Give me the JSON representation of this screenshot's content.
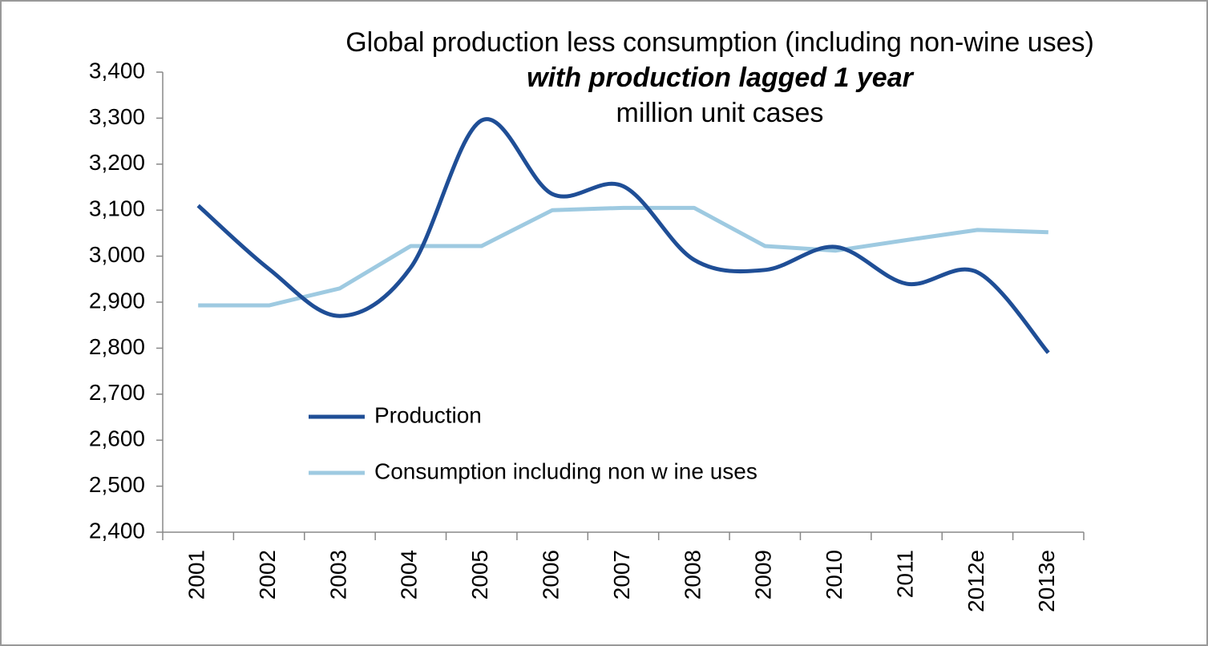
{
  "chart_data": {
    "type": "line",
    "title": [
      "Global production less consumption (including non-wine uses)",
      "with production lagged 1 year",
      "million unit cases"
    ],
    "categories": [
      "2001",
      "2002",
      "2003",
      "2004",
      "2005",
      "2006",
      "2007",
      "2008",
      "2009",
      "2010",
      "2011",
      "2012e",
      "2013e"
    ],
    "series": [
      {
        "name": "Production",
        "color": "#1f4e96",
        "smooth": true,
        "values": [
          3110,
          2972,
          2870,
          2975,
          3295,
          3135,
          3152,
          2992,
          2970,
          3020,
          2940,
          2965,
          2790
        ]
      },
      {
        "name": "Consumption including non w ine uses",
        "color": "#9ecae1",
        "smooth": false,
        "values": [
          2893,
          2893,
          2930,
          3022,
          3022,
          3100,
          3105,
          3105,
          3022,
          3012,
          3035,
          3057,
          3052
        ]
      }
    ],
    "ylim": [
      2400,
      3400
    ],
    "yticks": [
      {
        "value": 2400,
        "label": "2,400"
      },
      {
        "value": 2500,
        "label": "2,500"
      },
      {
        "value": 2600,
        "label": "2,600"
      },
      {
        "value": 2700,
        "label": "2,700"
      },
      {
        "value": 2800,
        "label": "2,800"
      },
      {
        "value": 2900,
        "label": "2,900"
      },
      {
        "value": 3000,
        "label": "3,000"
      },
      {
        "value": 3100,
        "label": "3,100"
      },
      {
        "value": 3200,
        "label": "3,200"
      },
      {
        "value": 3300,
        "label": "3,300"
      },
      {
        "value": 3400,
        "label": "3,400"
      }
    ],
    "grid": false
  }
}
